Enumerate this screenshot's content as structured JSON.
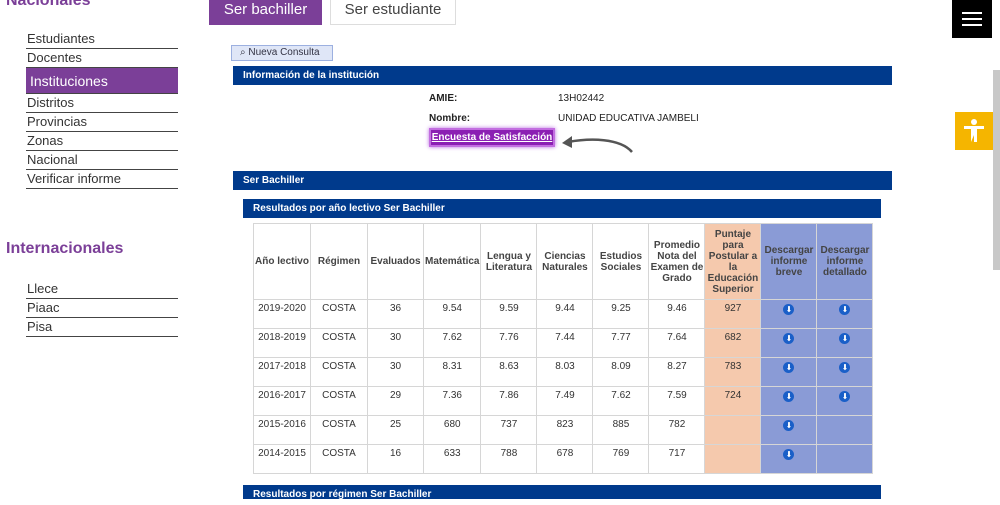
{
  "sidebar": {
    "section1_title": "Nacionales",
    "section1_items": [
      "Estudiantes",
      "Docentes",
      "Instituciones",
      "Distritos",
      "Provincias",
      "Zonas",
      "Nacional",
      "Verificar informe"
    ],
    "section2_title": "Internacionales",
    "section2_items": [
      "Llece",
      "Piaac",
      "Pisa"
    ]
  },
  "tabs": {
    "tab1": "Ser bachiller",
    "tab2": "Ser estudiante"
  },
  "nueva_consulta": "⌕ Nueva Consulta",
  "info": {
    "header": "Información de la institución",
    "amie_label": "AMIE:",
    "amie_value": "13H02442",
    "nombre_label": "Nombre:",
    "nombre_value": "UNIDAD EDUCATIVA JAMBELI",
    "encuesta": "Encuesta de Satisfacción"
  },
  "ser_bachiller_header": "Ser Bachiller",
  "results_year_header": "Resultados por año lectivo Ser Bachiller",
  "results_regimen_header": "Resultados por régimen Ser Bachiller",
  "table": {
    "headers": [
      "Año lectivo",
      "Régimen",
      "Evaluados",
      "Matemática",
      "Lengua y Literatura",
      "Ciencias Naturales",
      "Estudios Sociales",
      "Promedio Nota del Examen de Grado",
      "Puntaje para Postular a la Educación Superior",
      "Descargar informe breve",
      "Descargar informe detallado"
    ],
    "rows": [
      {
        "anio": "2019-2020",
        "regimen": "COSTA",
        "evaluados": "36",
        "mat": "9.54",
        "len": "9.59",
        "cn": "9.44",
        "es": "9.25",
        "prom": "9.46",
        "puntaje": "927"
      },
      {
        "anio": "2018-2019",
        "regimen": "COSTA",
        "evaluados": "30",
        "mat": "7.62",
        "len": "7.76",
        "cn": "7.44",
        "es": "7.77",
        "prom": "7.64",
        "puntaje": "682"
      },
      {
        "anio": "2017-2018",
        "regimen": "COSTA",
        "evaluados": "30",
        "mat": "8.31",
        "len": "8.63",
        "cn": "8.03",
        "es": "8.09",
        "prom": "8.27",
        "puntaje": "783"
      },
      {
        "anio": "2016-2017",
        "regimen": "COSTA",
        "evaluados": "29",
        "mat": "7.36",
        "len": "7.86",
        "cn": "7.49",
        "es": "7.62",
        "prom": "7.59",
        "puntaje": "724"
      },
      {
        "anio": "2015-2016",
        "regimen": "COSTA",
        "evaluados": "25",
        "mat": "680",
        "len": "737",
        "cn": "823",
        "es": "885",
        "prom": "782",
        "puntaje": ""
      },
      {
        "anio": "2014-2015",
        "regimen": "COSTA",
        "evaluados": "16",
        "mat": "633",
        "len": "788",
        "cn": "678",
        "es": "769",
        "prom": "717",
        "puntaje": ""
      }
    ],
    "download_icon": "⬇"
  },
  "icons": {
    "menu": "hamburger-icon",
    "accessibility": "accessibility-icon",
    "arrow": "curved-arrow-icon"
  },
  "colors": {
    "purple": "#7b3f98",
    "blue": "#003a8c",
    "puntaje": "#f5c9ad",
    "descarga": "#8a9bd6",
    "access": "#f5b500"
  }
}
